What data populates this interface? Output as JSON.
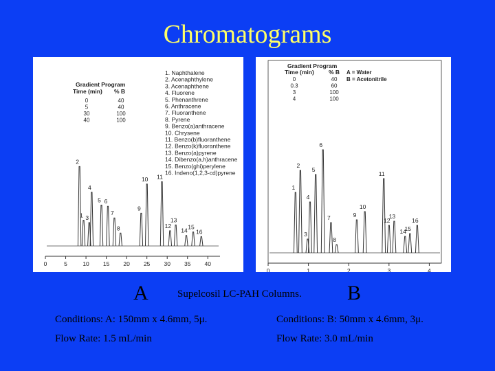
{
  "slide": {
    "title": "Chromatograms",
    "label_a": "A",
    "label_b": "B",
    "column_note": "Supelcosil LC-PAH Columns.",
    "cond_a": "Conditions: A: 150mm x 4.6mm, 5μ.",
    "cond_b": "Conditions: B: 50mm x 4.6mm, 3μ.",
    "flow_a": "Flow Rate: 1.5 mL/min",
    "flow_b": "Flow Rate: 3.0 mL/min"
  },
  "colors": {
    "background": "#0c3ef4",
    "title": "#ffff66",
    "trace": "#222222"
  },
  "chart_data": [
    {
      "type": "line",
      "gradient_program": {
        "title": "Gradient Program",
        "headers": [
          "Time (min)",
          "% B"
        ],
        "rows": [
          [
            "0",
            "40"
          ],
          [
            "5",
            "40"
          ],
          [
            "30",
            "100"
          ],
          [
            "40",
            "100"
          ]
        ]
      },
      "compounds": [
        "1. Naphthalene",
        "2. Acenaphthylene",
        "3. Acenaphthene",
        "4. Fluorene",
        "5. Phenanthrene",
        "6. Anthracene",
        "7. Fluoranthene",
        "8. Pyrene",
        "9. Benzo(a)anthracene",
        "10. Chrysene",
        "11. Benzo(b)fluoranthene",
        "12. Benzo(k)fluoranthene",
        "13. Benzo(a)pyrene",
        "14. Dibenzo(a,h)anthracene",
        "15. Benzo(ghi)perylene",
        "16. Indeno(1,2,3-cd)pyrene"
      ],
      "xlim": [
        0,
        43
      ],
      "ylim": [
        0,
        1
      ],
      "x_ticks": [
        "0",
        "5",
        "10",
        "15",
        "20",
        "25",
        "30",
        "35",
        "40"
      ],
      "x_tick_values": [
        0,
        5,
        10,
        15,
        20,
        25,
        30,
        35,
        40
      ],
      "peaks": [
        {
          "label": "1",
          "x": 9.4,
          "y": 0.22
        },
        {
          "label": "2",
          "x": 8.4,
          "y": 0.68
        },
        {
          "label": "3",
          "x": 10.8,
          "y": 0.2
        },
        {
          "label": "4",
          "x": 11.4,
          "y": 0.46
        },
        {
          "label": "5",
          "x": 13.8,
          "y": 0.35
        },
        {
          "label": "6",
          "x": 15.4,
          "y": 0.34
        },
        {
          "label": "7",
          "x": 17.0,
          "y": 0.24
        },
        {
          "label": "8",
          "x": 18.5,
          "y": 0.11
        },
        {
          "label": "9",
          "x": 23.6,
          "y": 0.28
        },
        {
          "label": "10",
          "x": 25.0,
          "y": 0.53
        },
        {
          "label": "11",
          "x": 28.7,
          "y": 0.55
        },
        {
          "label": "12",
          "x": 30.7,
          "y": 0.13
        },
        {
          "label": "13",
          "x": 32.1,
          "y": 0.18
        },
        {
          "label": "14",
          "x": 34.7,
          "y": 0.09
        },
        {
          "label": "15",
          "x": 36.4,
          "y": 0.12
        },
        {
          "label": "16",
          "x": 38.4,
          "y": 0.08
        }
      ]
    },
    {
      "type": "line",
      "gradient_program": {
        "title": "Gradient Program",
        "headers": [
          "Time (min)",
          "% B"
        ],
        "rows": [
          [
            "0",
            "40"
          ],
          [
            "0.3",
            "60"
          ],
          [
            "3",
            "100"
          ],
          [
            "4",
            "100"
          ]
        ]
      },
      "legend": [
        "A = Water",
        "B = Acetonitrile"
      ],
      "xlim": [
        0,
        4.3
      ],
      "ylim": [
        0,
        1
      ],
      "x_ticks": [
        "0",
        "1",
        "2",
        "3",
        "4"
      ],
      "x_tick_values": [
        0,
        1,
        2,
        3,
        4
      ],
      "peaks": [
        {
          "label": "1",
          "x": 0.68,
          "y": 0.44
        },
        {
          "label": "2",
          "x": 0.8,
          "y": 0.6
        },
        {
          "label": "3",
          "x": 0.98,
          "y": 0.1
        },
        {
          "label": "4",
          "x": 1.04,
          "y": 0.37
        },
        {
          "label": "5",
          "x": 1.18,
          "y": 0.57
        },
        {
          "label": "6",
          "x": 1.36,
          "y": 0.75
        },
        {
          "label": "7",
          "x": 1.56,
          "y": 0.22
        },
        {
          "label": "8",
          "x": 1.7,
          "y": 0.06
        },
        {
          "label": "9",
          "x": 2.2,
          "y": 0.24
        },
        {
          "label": "10",
          "x": 2.4,
          "y": 0.3
        },
        {
          "label": "11",
          "x": 2.87,
          "y": 0.54
        },
        {
          "label": "12",
          "x": 3.0,
          "y": 0.2
        },
        {
          "label": "13",
          "x": 3.13,
          "y": 0.23
        },
        {
          "label": "14",
          "x": 3.4,
          "y": 0.12
        },
        {
          "label": "15",
          "x": 3.52,
          "y": 0.14
        },
        {
          "label": "16",
          "x": 3.7,
          "y": 0.2
        }
      ]
    }
  ]
}
